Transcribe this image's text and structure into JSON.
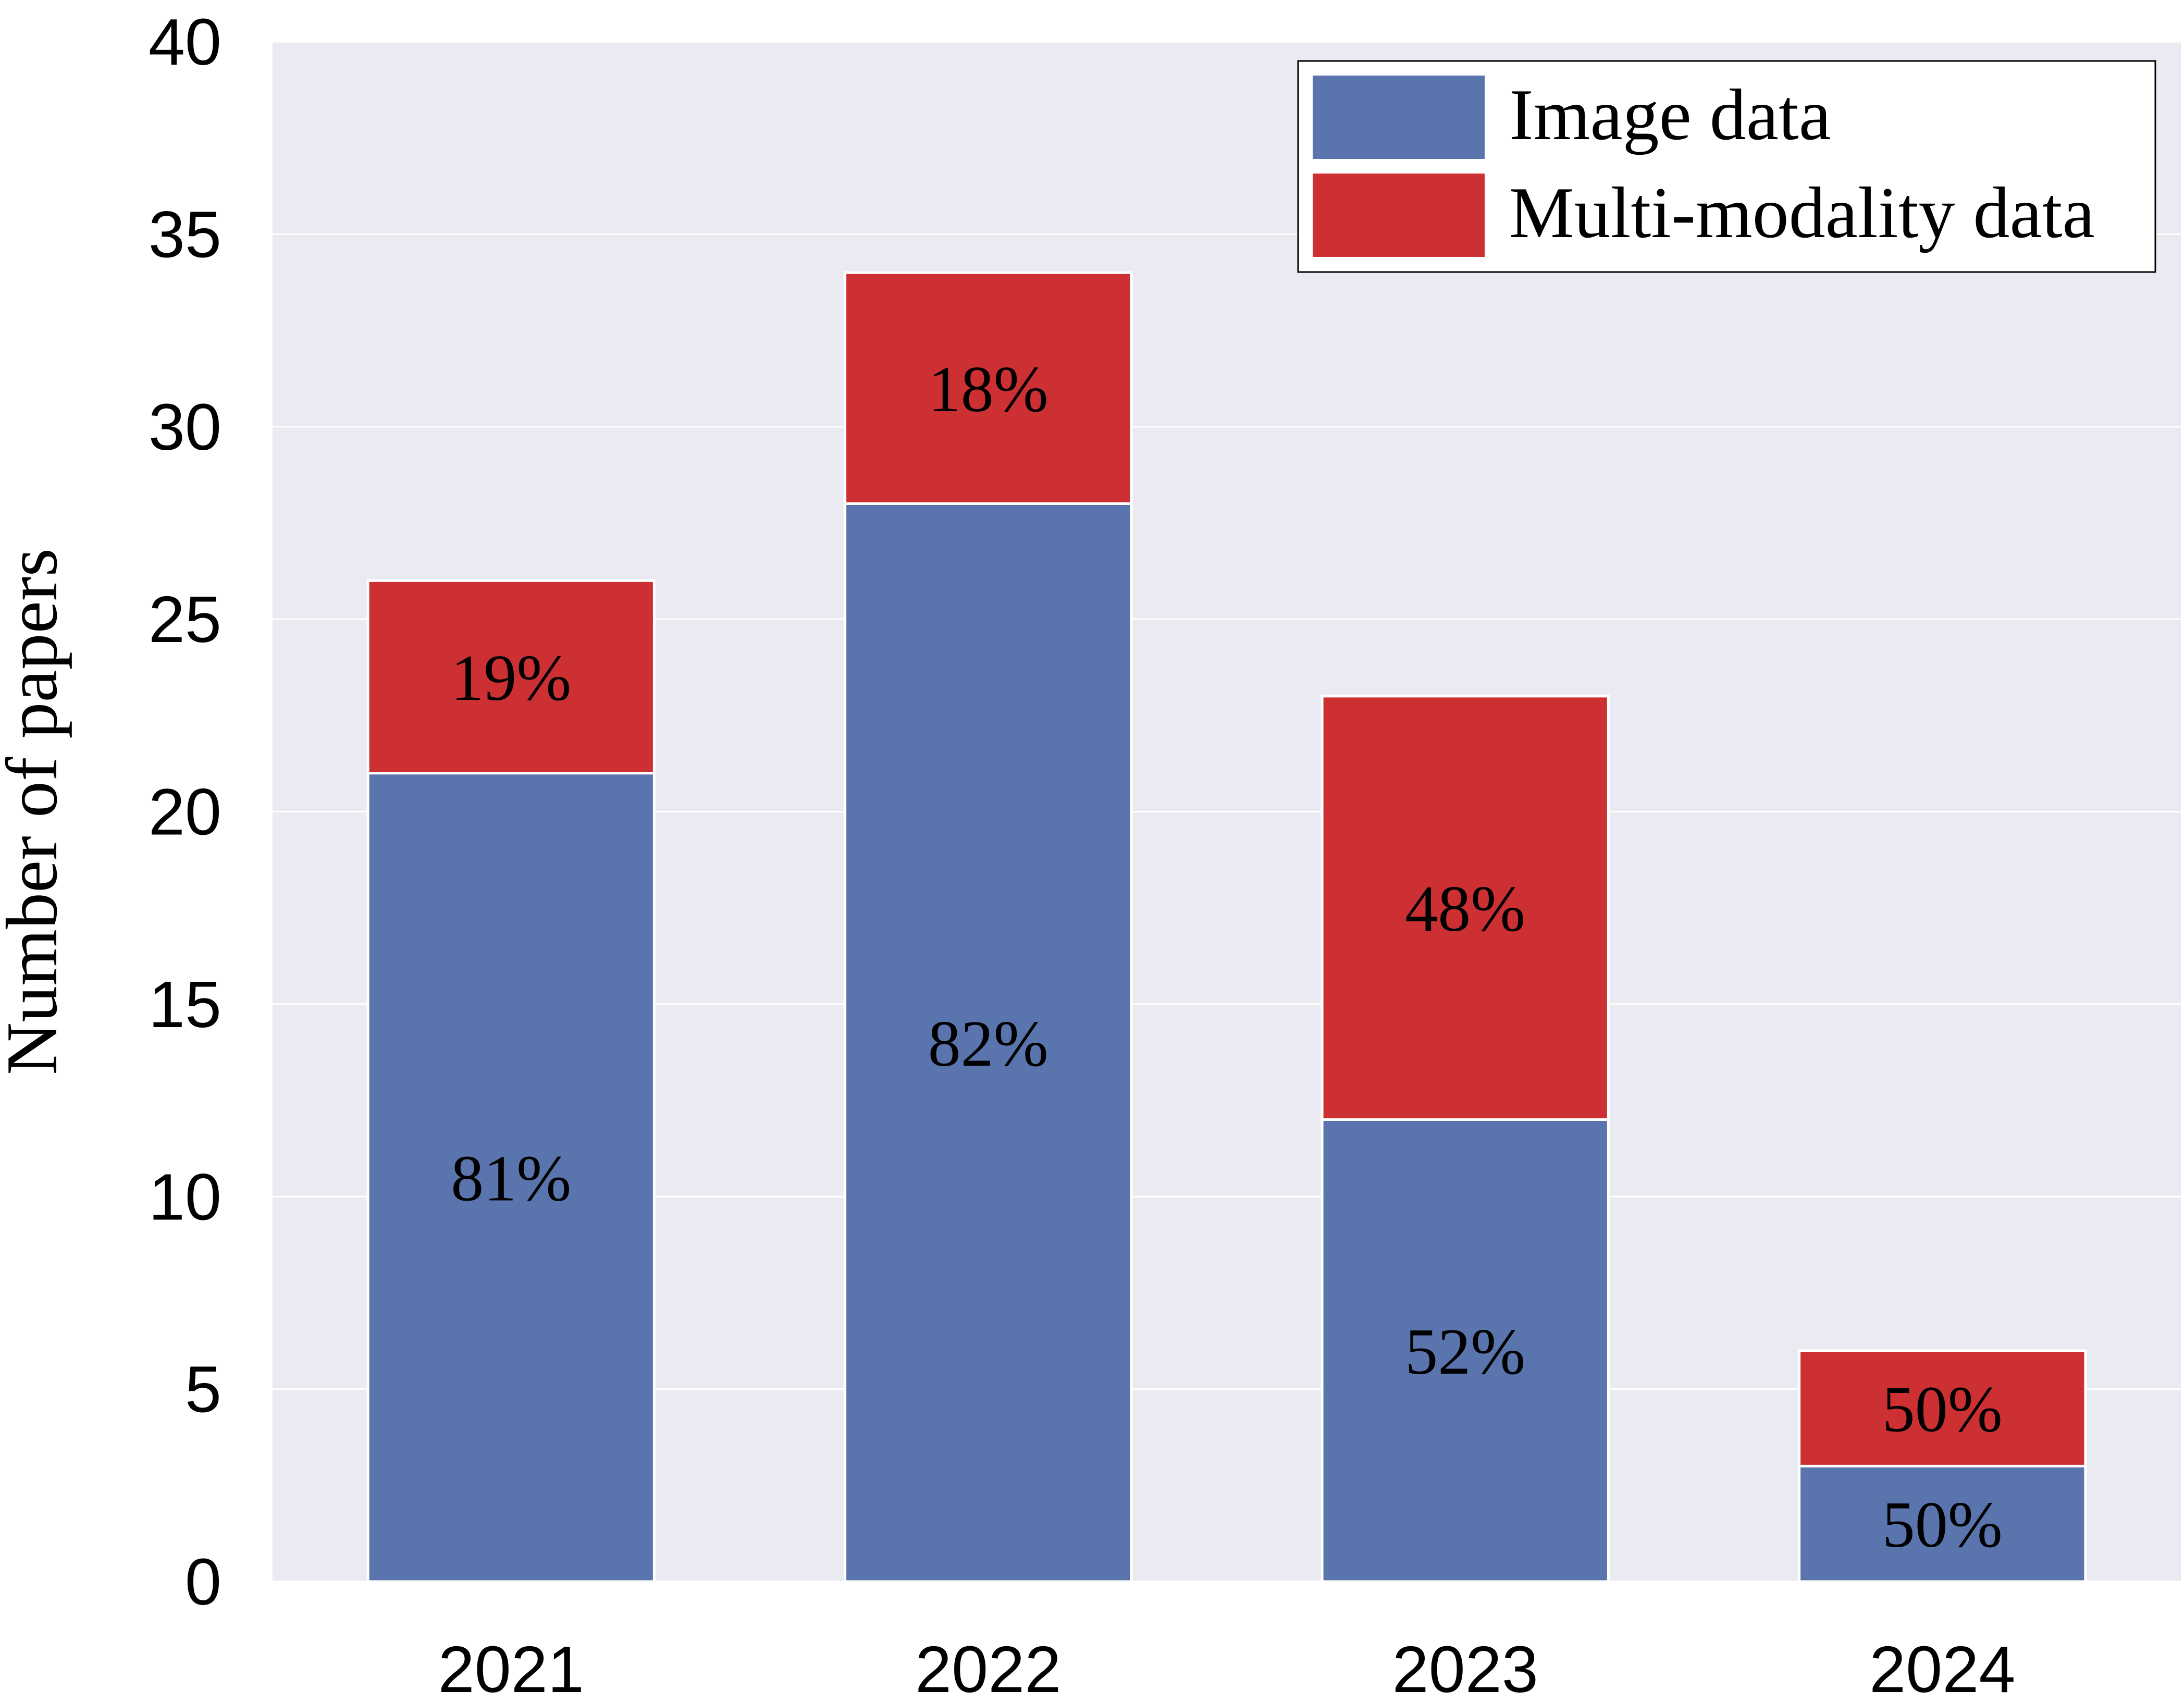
{
  "chart_data": {
    "type": "bar",
    "stacked": true,
    "title": "",
    "xlabel": "",
    "ylabel": "Number of papers",
    "categories": [
      "2021",
      "2022",
      "2023",
      "2024"
    ],
    "ylim": [
      0,
      40
    ],
    "yticks": [
      0,
      5,
      10,
      15,
      20,
      25,
      30,
      35,
      40
    ],
    "grid": true,
    "legend_position": "top-right",
    "background_color": "#EAEAF2",
    "series": [
      {
        "name": "Image data",
        "color": "#5A74AE",
        "values": [
          21,
          28,
          12,
          3
        ],
        "labels": [
          "81%",
          "82%",
          "52%",
          "50%"
        ]
      },
      {
        "name": "Multi-modality data",
        "color": "#CC3033",
        "values": [
          5,
          6,
          11,
          3
        ],
        "labels": [
          "19%",
          "18%",
          "48%",
          "50%"
        ]
      }
    ]
  }
}
